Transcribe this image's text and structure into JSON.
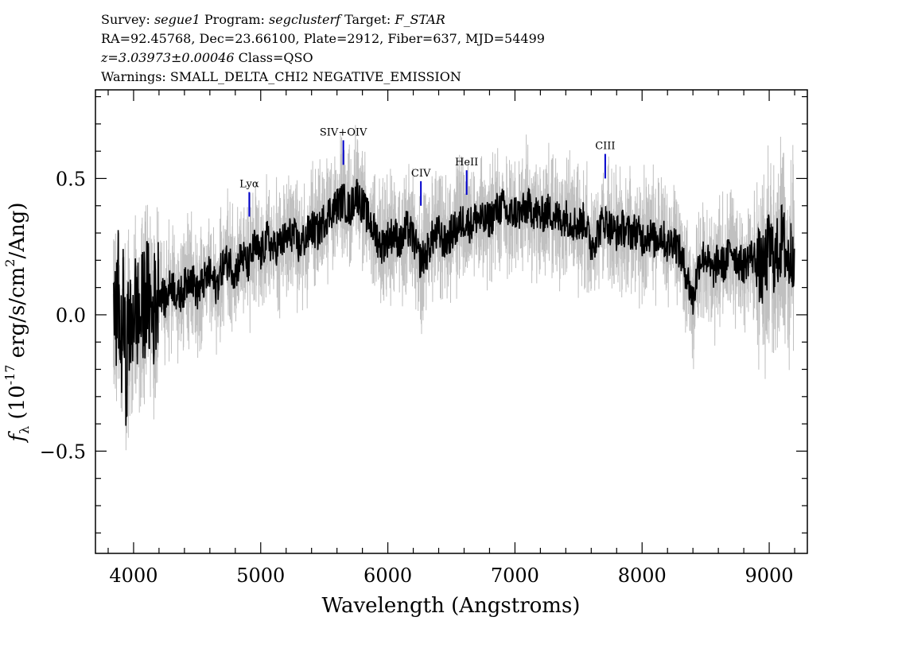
{
  "header": {
    "line1": [
      {
        "text": "Survey: ",
        "italic": false
      },
      {
        "text": "segue1",
        "italic": true
      },
      {
        "text": " Program: ",
        "italic": false
      },
      {
        "text": "segclusterf",
        "italic": true
      },
      {
        "text": " Target: ",
        "italic": false
      },
      {
        "text": "F_STAR",
        "italic": true
      }
    ],
    "line2": "RA=92.45768, Dec=23.66100, Plate=2912, Fiber=637, MJD=54499",
    "line3_z": "z=3.03973±0.00046",
    "line3_class": " Class=QSO",
    "line4": "Warnings: SMALL_DELTA_CHI2 NEGATIVE_EMISSION"
  },
  "chart_data": {
    "type": "line",
    "xlabel": "Wavelength (Angstroms)",
    "ylabel_main": "f",
    "ylabel_sub": "λ",
    "ylabel_rest_a": " (10",
    "ylabel_exp": "-17",
    "ylabel_rest_b": " erg/s/cm",
    "ylabel_exp2": "2",
    "ylabel_rest_c": "/Ang)",
    "xlim": [
      3700,
      9300
    ],
    "ylim": [
      -0.875,
      0.825
    ],
    "x_ticks": [
      {
        "value": 4000,
        "label": "4000"
      },
      {
        "value": 5000,
        "label": "5000"
      },
      {
        "value": 6000,
        "label": "6000"
      },
      {
        "value": 7000,
        "label": "7000"
      },
      {
        "value": 8000,
        "label": "8000"
      },
      {
        "value": 9000,
        "label": "9000"
      }
    ],
    "y_ticks": [
      {
        "value": -0.5,
        "label": "−0.5"
      },
      {
        "value": 0.0,
        "label": "0.0"
      },
      {
        "value": 0.5,
        "label": "0.5"
      }
    ],
    "series": [
      {
        "role": "flux",
        "color": "#000000",
        "x": [
          3840,
          3860,
          3880,
          3900,
          3920,
          3940,
          3960,
          3980,
          4000,
          4050,
          4100,
          4150,
          4200,
          4250,
          4300,
          4350,
          4400,
          4450,
          4500,
          4550,
          4600,
          4650,
          4700,
          4750,
          4800,
          4850,
          4900,
          4950,
          5000,
          5050,
          5100,
          5150,
          5200,
          5250,
          5300,
          5350,
          5400,
          5450,
          5500,
          5550,
          5600,
          5650,
          5700,
          5750,
          5800,
          5850,
          5900,
          5950,
          6000,
          6050,
          6100,
          6150,
          6200,
          6250,
          6300,
          6350,
          6400,
          6450,
          6500,
          6550,
          6600,
          6650,
          6700,
          6750,
          6800,
          6850,
          6900,
          6950,
          7000,
          7050,
          7100,
          7150,
          7200,
          7250,
          7300,
          7350,
          7400,
          7450,
          7500,
          7550,
          7600,
          7650,
          7700,
          7750,
          7800,
          7850,
          7900,
          7950,
          8000,
          8050,
          8100,
          8150,
          8200,
          8250,
          8300,
          8350,
          8400,
          8450,
          8500,
          8550,
          8600,
          8650,
          8700,
          8750,
          8800,
          8850,
          8900,
          8950,
          9000,
          9050,
          9100,
          9150,
          9200
        ],
        "y": [
          0.02,
          -0.05,
          0.1,
          -0.15,
          0.05,
          -0.25,
          0.0,
          -0.1,
          0.05,
          -0.02,
          0.08,
          0.0,
          0.1,
          0.05,
          0.12,
          0.06,
          0.1,
          0.15,
          0.08,
          0.12,
          0.15,
          0.1,
          0.18,
          0.2,
          0.15,
          0.22,
          0.18,
          0.25,
          0.22,
          0.28,
          0.24,
          0.26,
          0.28,
          0.3,
          0.25,
          0.28,
          0.32,
          0.3,
          0.35,
          0.38,
          0.4,
          0.42,
          0.38,
          0.45,
          0.4,
          0.35,
          0.3,
          0.25,
          0.28,
          0.3,
          0.26,
          0.32,
          0.28,
          0.2,
          0.22,
          0.28,
          0.3,
          0.26,
          0.3,
          0.32,
          0.35,
          0.33,
          0.36,
          0.34,
          0.35,
          0.38,
          0.4,
          0.36,
          0.38,
          0.37,
          0.4,
          0.38,
          0.36,
          0.38,
          0.37,
          0.35,
          0.36,
          0.34,
          0.33,
          0.35,
          0.25,
          0.3,
          0.35,
          0.32,
          0.3,
          0.32,
          0.3,
          0.31,
          0.28,
          0.3,
          0.27,
          0.3,
          0.25,
          0.28,
          0.22,
          0.15,
          0.05,
          0.2,
          0.22,
          0.15,
          0.2,
          0.18,
          0.25,
          0.2,
          0.18,
          0.22,
          0.2,
          0.15,
          0.25,
          0.2,
          0.28,
          0.2,
          0.25
        ]
      },
      {
        "role": "noise-envelope",
        "color": "#c0c0c0"
      }
    ],
    "emission_lines": [
      {
        "label": "Lyα",
        "x": 4910,
        "y_low": 0.36,
        "y_high": 0.45
      },
      {
        "label": "SIV+OIV",
        "x": 5650,
        "y_low": 0.55,
        "y_high": 0.64
      },
      {
        "label": "CIV",
        "x": 6260,
        "y_low": 0.4,
        "y_high": 0.49
      },
      {
        "label": "HeII",
        "x": 6620,
        "y_low": 0.44,
        "y_high": 0.53
      },
      {
        "label": "CIII",
        "x": 7710,
        "y_low": 0.5,
        "y_high": 0.59
      }
    ],
    "line_marker_color": "#0000cc",
    "grid": false,
    "legend": "none"
  }
}
